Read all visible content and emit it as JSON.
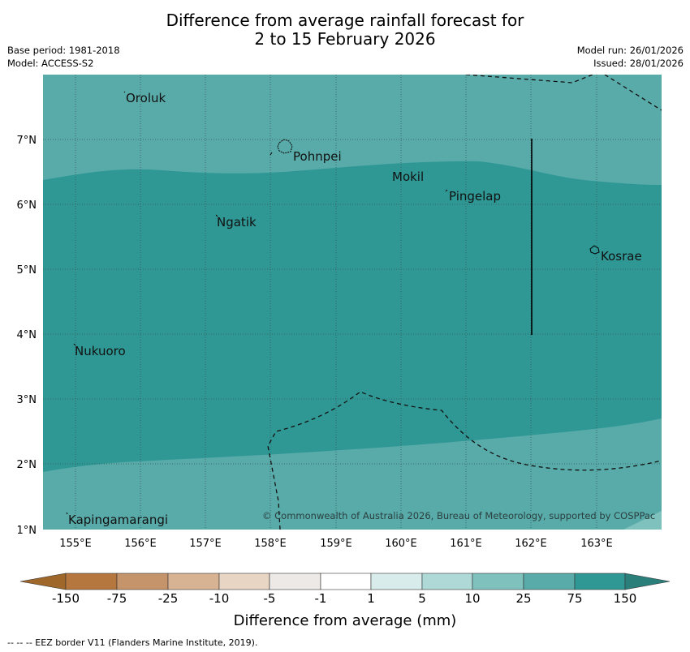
{
  "title": {
    "line1": "Difference from average rainfall forecast for",
    "line2": "2 to 15 February 2026"
  },
  "meta": {
    "base_period": "Base period: 1981-2018",
    "model": "Model: ACCESS-S2",
    "model_run": "Model run: 26/01/2026",
    "issued": "Issued: 28/01/2026"
  },
  "axes": {
    "lon_labels": [
      "155°E",
      "156°E",
      "157°E",
      "158°E",
      "159°E",
      "160°E",
      "161°E",
      "162°E",
      "163°E"
    ],
    "lat_labels": [
      "7°N",
      "6°N",
      "5°N",
      "4°N",
      "3°N",
      "2°N",
      "1°N"
    ]
  },
  "places": {
    "oroluk": "Oroluk",
    "pohnpei": "Pohnpei",
    "mokil": "Mokil",
    "pingelap": "Pingelap",
    "ngatik": "Ngatik",
    "kosrae": "Kosrae",
    "nukuoro": "Nukuoro",
    "kapingamarangi": "Kapingamarangi"
  },
  "copyright": "© Commonwealth of Australia 2026, Bureau of Meteorology, supported by COSPPac",
  "colorbar": {
    "title": "Difference from average (mm)",
    "labels": [
      "-150",
      "-75",
      "-25",
      "-10",
      "-5",
      "-1",
      "1",
      "5",
      "10",
      "25",
      "75",
      "150"
    ],
    "colors": {
      "neg150": "#a0672a",
      "neg75": "#b5773d",
      "neg25": "#c6946a",
      "neg10": "#d8b393",
      "neg5": "#e8d5c4",
      "neg1": "#ece9e6",
      "zero": "#ffffff",
      "pos1": "#d7eceb",
      "pos5": "#aed9d6",
      "pos10": "#7fc1bd",
      "pos25": "#59aba9",
      "pos75": "#2f9895",
      "pos150": "#2a7f7b"
    }
  },
  "map_colors": {
    "band_25_75": "#59aba9",
    "band_75_150": "#2f9895",
    "band_10_25": "#7fc1bd"
  },
  "footnote": "--  --  -- EEZ border V11 (Flanders Marine Institute, 2019)."
}
